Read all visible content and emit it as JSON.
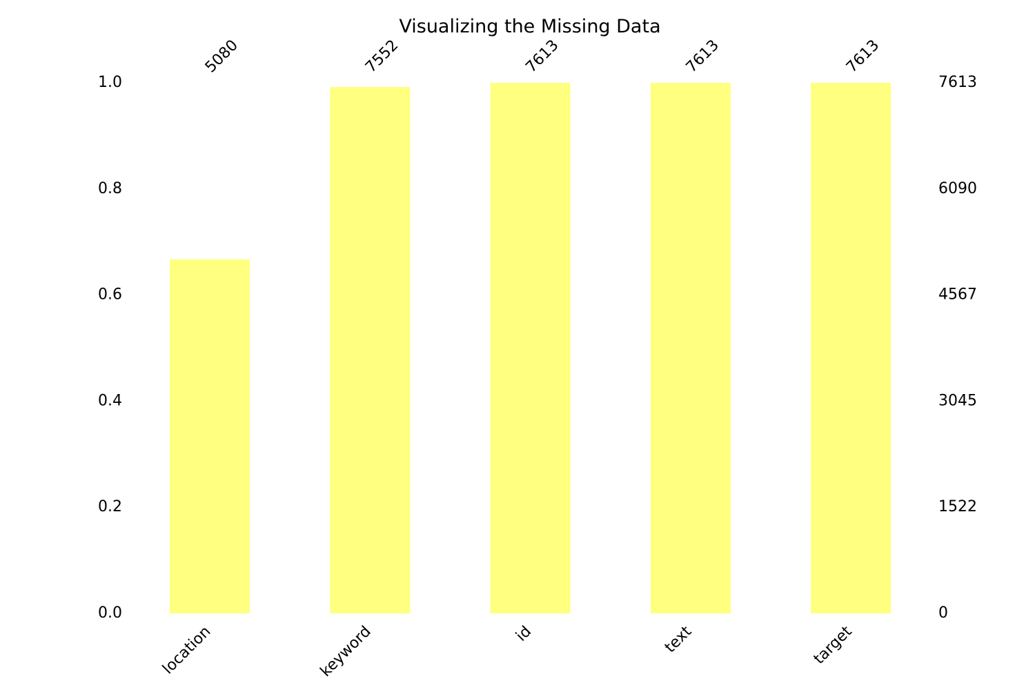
{
  "colors": {
    "bar": "#ffff80",
    "text": "#000000",
    "background": "#ffffff"
  },
  "chart_data": {
    "type": "bar",
    "title": "Visualizing the Missing Data",
    "xlabel": "",
    "ylabel": "",
    "categories": [
      "location",
      "keyword",
      "id",
      "text",
      "target"
    ],
    "values": [
      0.6673,
      0.992,
      1.0,
      1.0,
      1.0
    ],
    "counts": [
      "5080",
      "7552",
      "7613",
      "7613",
      "7613"
    ],
    "ylim": [
      0,
      1
    ],
    "left_ticks": [
      "0.0",
      "0.2",
      "0.4",
      "0.6",
      "0.8",
      "1.0"
    ],
    "right_ticks": [
      "0",
      "1522",
      "3045",
      "4567",
      "6090",
      "7613"
    ],
    "grid": false,
    "legend": "none"
  }
}
